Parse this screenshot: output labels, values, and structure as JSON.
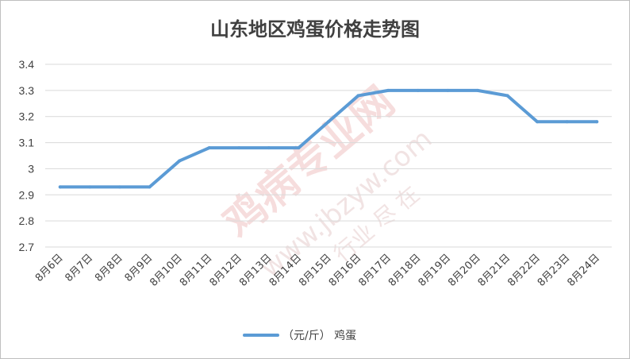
{
  "chart_data": {
    "type": "line",
    "title": "山东地区鸡蛋价格走势图",
    "categories": [
      "8月6日",
      "8月7日",
      "8月8日",
      "8月9日",
      "8月10日",
      "8月11日",
      "8月12日",
      "8月13日",
      "8月14日",
      "8月15日",
      "8月16日",
      "8月17日",
      "8月18日",
      "8月19日",
      "8月20日",
      "8月21日",
      "8月22日",
      "8月23日",
      "8月24日"
    ],
    "series": [
      {
        "name": "（元/斤） 鸡蛋",
        "values": [
          2.93,
          2.93,
          2.93,
          2.93,
          3.03,
          3.08,
          3.08,
          3.08,
          3.08,
          3.18,
          3.28,
          3.3,
          3.3,
          3.3,
          3.3,
          3.28,
          3.18,
          3.18,
          3.18
        ]
      }
    ],
    "ylim": [
      2.7,
      3.4
    ],
    "yticks": [
      "2.7",
      "2.8",
      "2.9",
      "3",
      "3.1",
      "3.2",
      "3.3",
      "3.4"
    ],
    "grid": true,
    "legend_position": "bottom",
    "colors": {
      "series": "#5b9bd5",
      "grid": "#d9d9d9",
      "text": "#404040"
    }
  },
  "watermark": {
    "main": "鸡病专业网",
    "url": "www.jbzyw.com",
    "slogan": "行业 尽 在"
  }
}
